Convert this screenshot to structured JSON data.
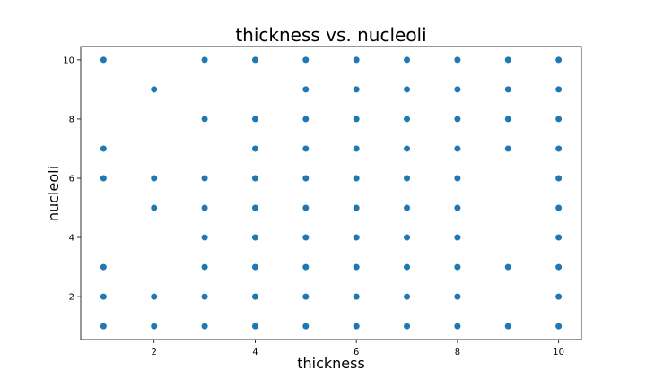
{
  "chart_data": {
    "type": "scatter",
    "title": "thickness vs. nucleoli",
    "xlabel": "thickness",
    "ylabel": "nucleoli",
    "xlim": [
      0.55,
      10.45
    ],
    "ylim": [
      0.55,
      10.45
    ],
    "xticks": [
      2,
      4,
      6,
      8,
      10
    ],
    "yticks": [
      2,
      4,
      6,
      8,
      10
    ],
    "grid": false,
    "marker_color": "#1f77b4",
    "points": [
      [
        1,
        10
      ],
      [
        1,
        7
      ],
      [
        1,
        6
      ],
      [
        1,
        3
      ],
      [
        1,
        2
      ],
      [
        1,
        1
      ],
      [
        2,
        9
      ],
      [
        2,
        6
      ],
      [
        2,
        5
      ],
      [
        2,
        2
      ],
      [
        2,
        1
      ],
      [
        3,
        10
      ],
      [
        3,
        8
      ],
      [
        3,
        6
      ],
      [
        3,
        5
      ],
      [
        3,
        4
      ],
      [
        3,
        3
      ],
      [
        3,
        2
      ],
      [
        3,
        1
      ],
      [
        4,
        10
      ],
      [
        4,
        8
      ],
      [
        4,
        7
      ],
      [
        4,
        6
      ],
      [
        4,
        5
      ],
      [
        4,
        4
      ],
      [
        4,
        3
      ],
      [
        4,
        2
      ],
      [
        4,
        1
      ],
      [
        5,
        10
      ],
      [
        5,
        9
      ],
      [
        5,
        8
      ],
      [
        5,
        7
      ],
      [
        5,
        6
      ],
      [
        5,
        5
      ],
      [
        5,
        4
      ],
      [
        5,
        3
      ],
      [
        5,
        2
      ],
      [
        5,
        1
      ],
      [
        6,
        10
      ],
      [
        6,
        9
      ],
      [
        6,
        8
      ],
      [
        6,
        7
      ],
      [
        6,
        6
      ],
      [
        6,
        5
      ],
      [
        6,
        4
      ],
      [
        6,
        3
      ],
      [
        6,
        2
      ],
      [
        6,
        1
      ],
      [
        7,
        10
      ],
      [
        7,
        9
      ],
      [
        7,
        8
      ],
      [
        7,
        7
      ],
      [
        7,
        6
      ],
      [
        7,
        5
      ],
      [
        7,
        4
      ],
      [
        7,
        3
      ],
      [
        7,
        2
      ],
      [
        7,
        1
      ],
      [
        8,
        10
      ],
      [
        8,
        9
      ],
      [
        8,
        8
      ],
      [
        8,
        7
      ],
      [
        8,
        6
      ],
      [
        8,
        5
      ],
      [
        8,
        4
      ],
      [
        8,
        3
      ],
      [
        8,
        2
      ],
      [
        8,
        1
      ],
      [
        9,
        10
      ],
      [
        9,
        9
      ],
      [
        9,
        8
      ],
      [
        9,
        7
      ],
      [
        9,
        3
      ],
      [
        9,
        1
      ],
      [
        10,
        10
      ],
      [
        10,
        9
      ],
      [
        10,
        8
      ],
      [
        10,
        7
      ],
      [
        10,
        6
      ],
      [
        10,
        5
      ],
      [
        10,
        4
      ],
      [
        10,
        3
      ],
      [
        10,
        2
      ],
      [
        10,
        1
      ]
    ]
  }
}
